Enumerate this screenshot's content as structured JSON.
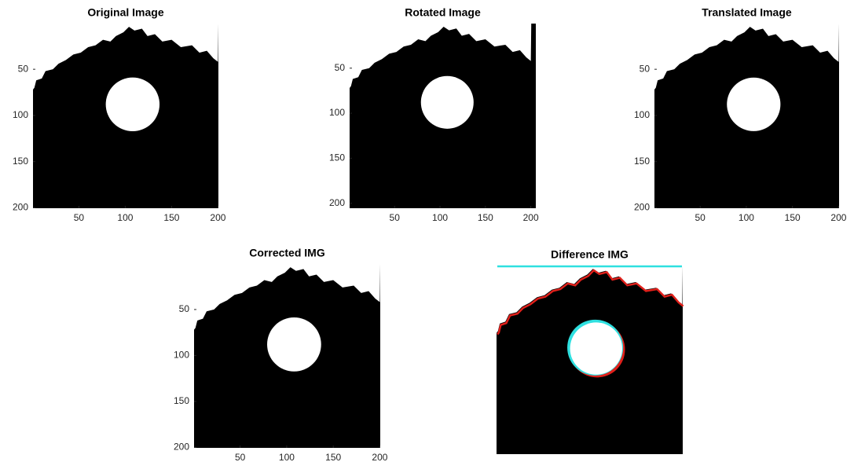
{
  "chart_data": [
    {
      "type": "image",
      "title": "Original Image",
      "xlim": [
        0.5,
        200.5
      ],
      "ylim": [
        0.5,
        200.5
      ],
      "xticks": [
        50,
        100,
        150,
        200
      ],
      "yticks": [
        50,
        100,
        150,
        200
      ]
    },
    {
      "type": "image",
      "title": "Rotated Image",
      "xlim": [
        0.5,
        205.5
      ],
      "ylim": [
        0.5,
        205.5
      ],
      "xticks": [
        50,
        100,
        150,
        200
      ],
      "yticks": [
        50,
        100,
        150,
        200
      ]
    },
    {
      "type": "image",
      "title": "Translated Image",
      "xlim": [
        0.5,
        200.5
      ],
      "ylim": [
        0.5,
        200.5
      ],
      "xticks": [
        50,
        100,
        150,
        200
      ],
      "yticks": [
        50,
        100,
        150,
        200
      ]
    },
    {
      "type": "image",
      "title": "Corrected IMG",
      "xlim": [
        0.5,
        200.5
      ],
      "ylim": [
        0.5,
        200.5
      ],
      "xticks": [
        50,
        100,
        150,
        200
      ],
      "yticks": [
        50,
        100,
        150,
        200
      ]
    },
    {
      "type": "image",
      "title": "Difference IMG"
    }
  ]
}
